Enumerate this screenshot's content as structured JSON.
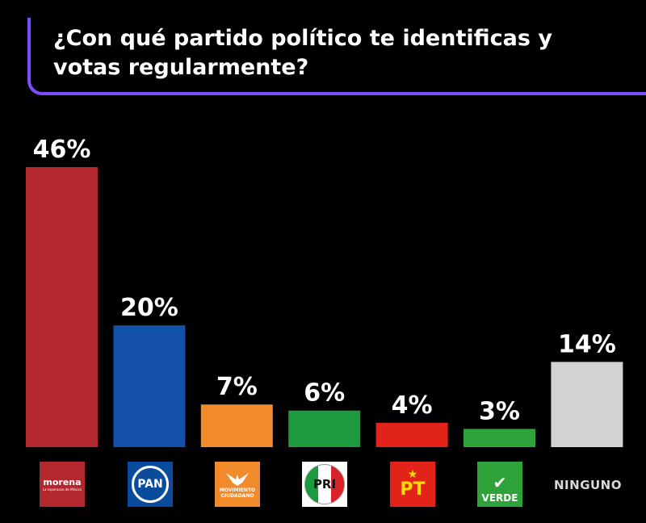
{
  "title": "¿Con qué partido político te identificas y votas regularmente?",
  "chart_data": {
    "type": "bar",
    "title": "¿Con qué partido político te identificas y votas regularmente?",
    "categories": [
      "morena",
      "PAN",
      "MOVIMIENTO CIUDADANO",
      "PRI",
      "PT",
      "VERDE",
      "NINGUNO"
    ],
    "values": [
      46,
      20,
      7,
      6,
      4,
      3,
      14
    ],
    "value_labels": [
      "46%",
      "20%",
      "7%",
      "6%",
      "4%",
      "3%",
      "14%"
    ],
    "colors": [
      "#b3282d",
      "#1352a8",
      "#f28a2e",
      "#1f9b3f",
      "#e2231a",
      "#2fa23a",
      "#d3d3d3"
    ],
    "ylim": [
      0,
      46
    ],
    "grid": false,
    "legend": "none"
  },
  "logos": {
    "morena": {
      "text": "morena",
      "subtext": "La esperanza de México",
      "icon": "morena-logo"
    },
    "pan": {
      "text": "PAN",
      "icon": "pan-logo"
    },
    "mc": {
      "line1": "MOVIMIENTO",
      "line2": "CIUDADANO",
      "icon": "mc-eagle-logo"
    },
    "pri": {
      "text": "PRI",
      "icon": "pri-logo"
    },
    "pt": {
      "text": "PT",
      "icon": "pt-star-logo"
    },
    "verde": {
      "text": "VERDE",
      "icon": "verde-toucan-logo"
    }
  },
  "ninguno_label": "NINGUNO"
}
